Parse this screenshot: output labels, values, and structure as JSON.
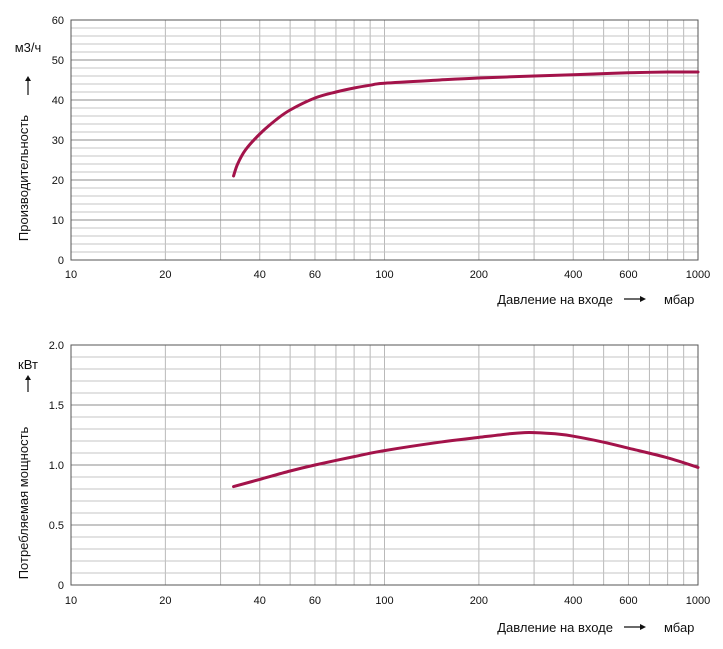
{
  "chart_data": [
    {
      "type": "line",
      "xscale": "log",
      "xlim": [
        10,
        1000
      ],
      "ylim": [
        0,
        60
      ],
      "grid": true,
      "ylabel": "Производительность",
      "yunit": "м3/ч",
      "xlabel": "Давление на входе",
      "xunit": "мбар",
      "x_ticks": [
        10,
        20,
        40,
        60,
        100,
        200,
        400,
        600,
        1000
      ],
      "y_ticks": [
        0,
        10,
        20,
        30,
        40,
        50,
        60
      ],
      "x_tick_labels": [
        "10",
        "20",
        "40",
        "60",
        "100",
        "200",
        "400",
        "600",
        "1000"
      ],
      "y_tick_labels": [
        "0",
        "10",
        "20",
        "30",
        "40",
        "50",
        "60"
      ],
      "color": "#a3134a",
      "series": [
        {
          "x": [
            33,
            34,
            36,
            40,
            45,
            50,
            60,
            70,
            80,
            90,
            100,
            150,
            200,
            300,
            400,
            500,
            600,
            800,
            1000
          ],
          "y": [
            21,
            24,
            27.5,
            31.5,
            35,
            37.5,
            40.5,
            42,
            43,
            43.7,
            44.2,
            45,
            45.5,
            46,
            46.3,
            46.6,
            46.8,
            47,
            47
          ]
        }
      ]
    },
    {
      "type": "line",
      "xscale": "log",
      "xlim": [
        10,
        1000
      ],
      "ylim": [
        0,
        2.0
      ],
      "grid": true,
      "ylabel": "Потребляемая мощность",
      "yunit": "кВт",
      "xlabel": "Давление на входе",
      "xunit": "мбар",
      "x_ticks": [
        10,
        20,
        40,
        60,
        100,
        200,
        400,
        600,
        1000
      ],
      "y_ticks": [
        0,
        0.5,
        1.0,
        1.5,
        2.0
      ],
      "x_tick_labels": [
        "10",
        "20",
        "40",
        "60",
        "100",
        "200",
        "400",
        "600",
        "1000"
      ],
      "y_tick_labels": [
        "0",
        "0.5",
        "1.0",
        "1.5",
        "2.0"
      ],
      "color": "#a3134a",
      "series": [
        {
          "x": [
            33,
            40,
            50,
            60,
            80,
            100,
            150,
            200,
            250,
            280,
            300,
            350,
            400,
            500,
            600,
            800,
            1000
          ],
          "y": [
            0.82,
            0.88,
            0.95,
            1.0,
            1.07,
            1.12,
            1.19,
            1.23,
            1.26,
            1.27,
            1.27,
            1.26,
            1.24,
            1.19,
            1.14,
            1.06,
            0.98
          ]
        }
      ]
    }
  ]
}
